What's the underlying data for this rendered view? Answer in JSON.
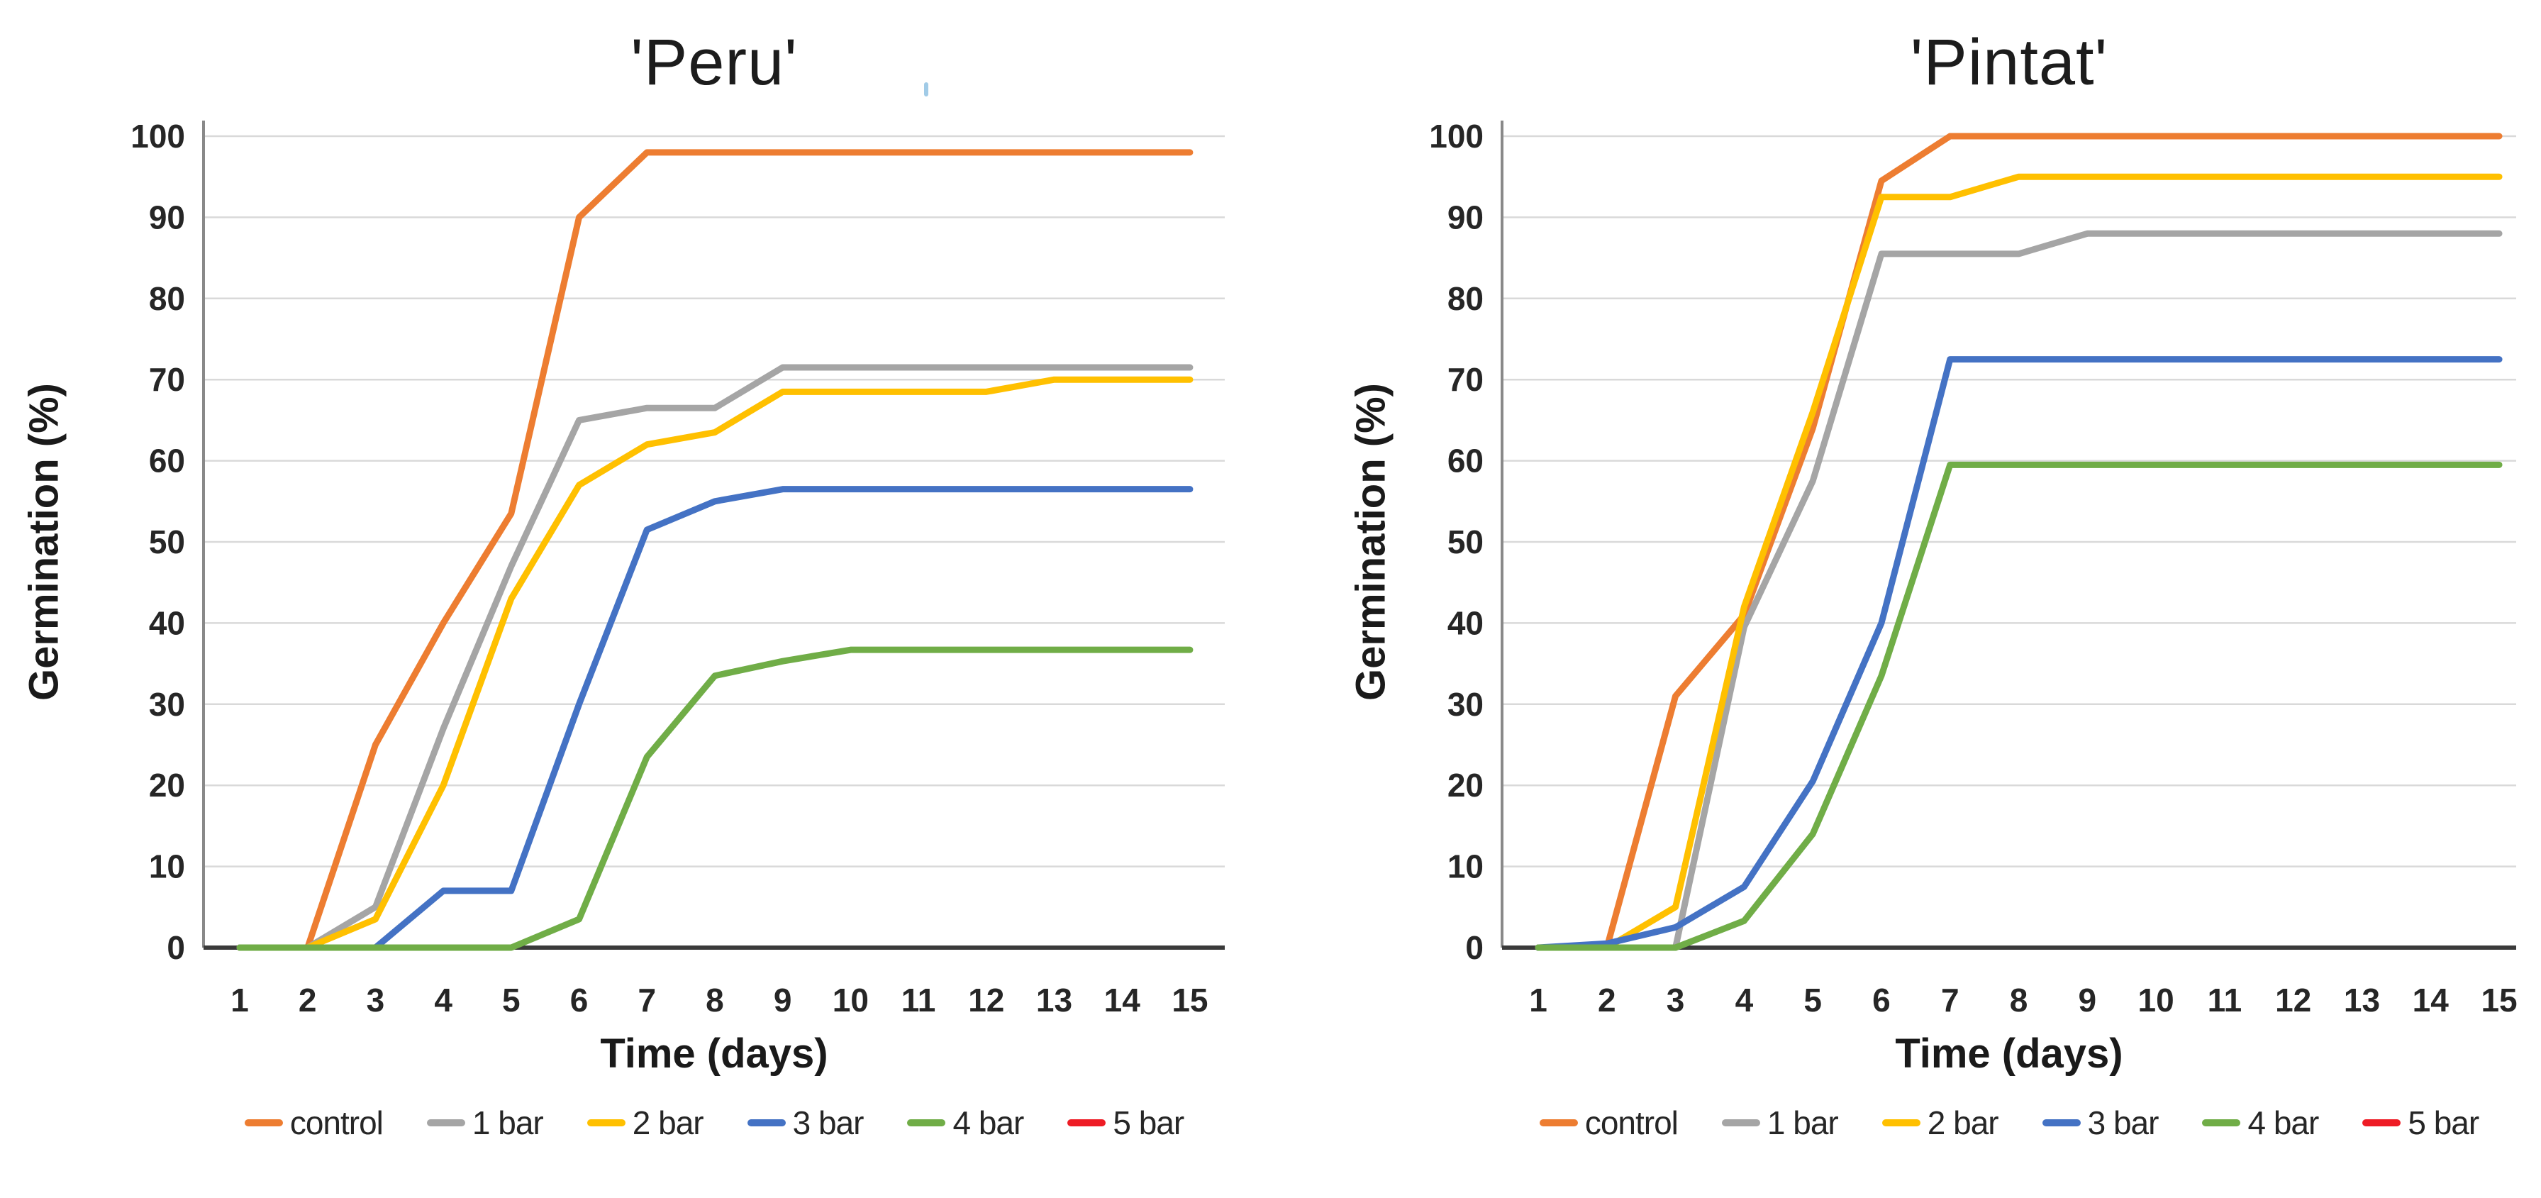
{
  "figure": {
    "background": "#ffffff",
    "description_colors": {
      "gridline": "#d9d9d9",
      "x_axis": "#3a3a3a",
      "y_axis": "#898989"
    }
  },
  "chart_data": [
    {
      "id": "peru",
      "type": "line",
      "title": "'Peru'",
      "xlabel": "Time (days)",
      "ylabel": "Germination (%)",
      "x": [
        1,
        2,
        3,
        4,
        5,
        6,
        7,
        8,
        9,
        10,
        11,
        12,
        13,
        14,
        15
      ],
      "ylim": [
        0,
        100
      ],
      "ytick_step": 10,
      "grid": true,
      "legend_position": "bottom",
      "series": [
        {
          "name": "control",
          "color": "#ED7D31",
          "values": [
            0,
            0,
            25,
            40,
            53.5,
            90,
            98,
            98,
            98,
            98,
            98,
            98,
            98,
            98,
            98
          ]
        },
        {
          "name": "1 bar",
          "color": "#A5A5A5",
          "values": [
            0,
            0,
            5,
            27,
            47,
            65,
            66.5,
            66.5,
            71.5,
            71.5,
            71.5,
            71.5,
            71.5,
            71.5,
            71.5
          ]
        },
        {
          "name": "2 bar",
          "color": "#FFC000",
          "values": [
            0,
            0,
            3.5,
            20,
            43,
            57,
            62,
            63.5,
            68.5,
            68.5,
            68.5,
            68.5,
            70,
            70,
            70
          ]
        },
        {
          "name": "3 bar",
          "color": "#4472C4",
          "values": [
            0,
            0,
            0,
            7,
            7,
            30,
            51.5,
            55,
            56.5,
            56.5,
            56.5,
            56.5,
            56.5,
            56.5,
            56.5
          ]
        },
        {
          "name": "4 bar",
          "color": "#70AD47",
          "values": [
            0,
            0,
            0,
            0,
            0,
            3.5,
            23.5,
            33.5,
            35.3,
            36.7,
            36.7,
            36.7,
            36.7,
            36.7,
            36.7
          ]
        },
        {
          "name": "5 bar",
          "color": "#EE1C25",
          "values": [
            0,
            0,
            0,
            0,
            0,
            0,
            0,
            0,
            0,
            0,
            0,
            0,
            0,
            0,
            0
          ]
        }
      ]
    },
    {
      "id": "pintat",
      "type": "line",
      "title": "'Pintat'",
      "xlabel": "Time (days)",
      "ylabel": "Germination (%)",
      "x": [
        1,
        2,
        3,
        4,
        5,
        6,
        7,
        8,
        9,
        10,
        11,
        12,
        13,
        14,
        15
      ],
      "ylim": [
        0,
        100
      ],
      "ytick_step": 10,
      "grid": true,
      "legend_position": "bottom",
      "series": [
        {
          "name": "control",
          "color": "#ED7D31",
          "values": [
            0,
            0,
            31,
            41,
            64,
            94.5,
            100,
            100,
            100,
            100,
            100,
            100,
            100,
            100,
            100
          ]
        },
        {
          "name": "1 bar",
          "color": "#A5A5A5",
          "values": [
            0,
            0,
            0,
            39.5,
            57.5,
            85.5,
            85.5,
            85.5,
            88,
            88,
            88,
            88,
            88,
            88,
            88
          ]
        },
        {
          "name": "2 bar",
          "color": "#FFC000",
          "values": [
            0,
            0,
            5,
            42,
            66,
            92.5,
            92.5,
            95,
            95,
            95,
            95,
            95,
            95,
            95,
            95
          ]
        },
        {
          "name": "3 bar",
          "color": "#4472C4",
          "values": [
            0,
            0.5,
            2.5,
            7.5,
            20.5,
            40,
            72.5,
            72.5,
            72.5,
            72.5,
            72.5,
            72.5,
            72.5,
            72.5,
            72.5
          ]
        },
        {
          "name": "4 bar",
          "color": "#70AD47",
          "values": [
            0,
            0,
            0,
            3.3,
            14,
            33.5,
            59.5,
            59.5,
            59.5,
            59.5,
            59.5,
            59.5,
            59.5,
            59.5,
            59.5
          ]
        },
        {
          "name": "5 bar",
          "color": "#EE1C25",
          "values": [
            0,
            0,
            0,
            0,
            0,
            0,
            0,
            0,
            0,
            0,
            0,
            0,
            0,
            0,
            0
          ]
        }
      ]
    }
  ]
}
